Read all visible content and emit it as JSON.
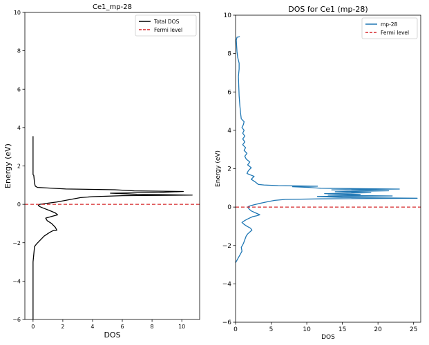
{
  "chart_data": [
    {
      "type": "line",
      "title": "Ce1_mp-28",
      "xlabel": "DOS",
      "ylabel": "Energy (eV)",
      "xlim": [
        -0.55,
        11.2
      ],
      "ylim": [
        -6,
        10
      ],
      "xticks": [
        0,
        2,
        4,
        6,
        8,
        10
      ],
      "yticks": [
        -6,
        -4,
        -2,
        0,
        2,
        4,
        6,
        8,
        10
      ],
      "grid": false,
      "legend": "top-right",
      "series": [
        {
          "name": "Total DOS",
          "color": "#000000",
          "style": "solid",
          "points": [
            [
              0,
              -6.0
            ],
            [
              0,
              -3.0
            ],
            [
              0.05,
              -2.6
            ],
            [
              0.1,
              -2.2
            ],
            [
              0.25,
              -2.05
            ],
            [
              0.5,
              -1.85
            ],
            [
              0.75,
              -1.65
            ],
            [
              0.95,
              -1.55
            ],
            [
              1.15,
              -1.45
            ],
            [
              1.4,
              -1.35
            ],
            [
              1.6,
              -1.35
            ],
            [
              1.5,
              -1.2
            ],
            [
              1.25,
              -1.0
            ],
            [
              0.95,
              -0.85
            ],
            [
              0.85,
              -0.72
            ],
            [
              1.3,
              -0.62
            ],
            [
              1.65,
              -0.55
            ],
            [
              1.5,
              -0.45
            ],
            [
              1.1,
              -0.32
            ],
            [
              0.7,
              -0.2
            ],
            [
              0.45,
              -0.12
            ],
            [
              0.35,
              -0.05
            ],
            [
              0.45,
              0
            ],
            [
              0.9,
              0.05
            ],
            [
              1.6,
              0.12
            ],
            [
              2.5,
              0.25
            ],
            [
              3.2,
              0.35
            ],
            [
              4.0,
              0.4
            ],
            [
              6.0,
              0.45
            ],
            [
              10.7,
              0.48
            ],
            [
              7.0,
              0.52
            ],
            [
              5.2,
              0.58
            ],
            [
              8.5,
              0.62
            ],
            [
              10.1,
              0.67
            ],
            [
              6.8,
              0.7
            ],
            [
              5.5,
              0.76
            ],
            [
              2.2,
              0.8
            ],
            [
              0.3,
              0.88
            ],
            [
              0.15,
              0.95
            ],
            [
              0.1,
              1.1
            ],
            [
              0.05,
              1.5
            ],
            [
              0,
              1.55
            ],
            [
              0,
              3.55
            ]
          ]
        },
        {
          "name": "Fermi level",
          "color": "#d62728",
          "style": "dashed",
          "points": [
            [
              -0.55,
              0
            ],
            [
              11.2,
              0
            ]
          ]
        }
      ]
    },
    {
      "type": "line",
      "title": "DOS for Ce1 (mp-28)",
      "xlabel": "DOS",
      "ylabel": "Energy (eV)",
      "xlim": [
        0,
        26
      ],
      "ylim": [
        -6,
        10
      ],
      "xticks": [
        0,
        5,
        10,
        15,
        20,
        25
      ],
      "yticks": [
        -6,
        -4,
        -2,
        0,
        2,
        4,
        6,
        8,
        10
      ],
      "grid": false,
      "legend": "top-right",
      "series": [
        {
          "name": "mp-28",
          "color": "#1f77b4",
          "style": "solid",
          "points": [
            [
              0,
              -2.9
            ],
            [
              0.3,
              -2.7
            ],
            [
              0.6,
              -2.5
            ],
            [
              0.9,
              -2.3
            ],
            [
              0.8,
              -2.1
            ],
            [
              1.1,
              -1.9
            ],
            [
              1.3,
              -1.7
            ],
            [
              1.5,
              -1.5
            ],
            [
              1.7,
              -1.4
            ],
            [
              2.0,
              -1.3
            ],
            [
              2.3,
              -1.2
            ],
            [
              2.1,
              -1.1
            ],
            [
              1.6,
              -1.0
            ],
            [
              1.2,
              -0.9
            ],
            [
              0.9,
              -0.8
            ],
            [
              1.3,
              -0.7
            ],
            [
              1.8,
              -0.6
            ],
            [
              2.4,
              -0.5
            ],
            [
              3.0,
              -0.45
            ],
            [
              3.4,
              -0.4
            ],
            [
              2.8,
              -0.3
            ],
            [
              2.2,
              -0.2
            ],
            [
              1.9,
              -0.1
            ],
            [
              1.7,
              0
            ],
            [
              1.9,
              0.05
            ],
            [
              2.6,
              0.12
            ],
            [
              3.5,
              0.2
            ],
            [
              4.5,
              0.28
            ],
            [
              5.5,
              0.35
            ],
            [
              7.0,
              0.4
            ],
            [
              12.0,
              0.43
            ],
            [
              25.5,
              0.46
            ],
            [
              15.0,
              0.5
            ],
            [
              11.5,
              0.55
            ],
            [
              22.0,
              0.58
            ],
            [
              13.0,
              0.62
            ],
            [
              17.5,
              0.66
            ],
            [
              12.5,
              0.7
            ],
            [
              19.0,
              0.75
            ],
            [
              14.0,
              0.8
            ],
            [
              21.5,
              0.85
            ],
            [
              13.5,
              0.9
            ],
            [
              23.0,
              0.94
            ],
            [
              12.0,
              0.98
            ],
            [
              10.5,
              1.02
            ],
            [
              8.0,
              1.06
            ],
            [
              11.5,
              1.09
            ],
            [
              6.0,
              1.12
            ],
            [
              4.0,
              1.15
            ],
            [
              3.2,
              1.18
            ],
            [
              2.8,
              1.3
            ],
            [
              2.2,
              1.45
            ],
            [
              2.6,
              1.6
            ],
            [
              1.6,
              1.75
            ],
            [
              1.8,
              1.9
            ],
            [
              2.2,
              2.05
            ],
            [
              1.7,
              2.2
            ],
            [
              2.0,
              2.35
            ],
            [
              1.5,
              2.5
            ],
            [
              1.3,
              2.65
            ],
            [
              1.6,
              2.8
            ],
            [
              1.2,
              2.95
            ],
            [
              1.4,
              3.1
            ],
            [
              1.0,
              3.25
            ],
            [
              1.3,
              3.4
            ],
            [
              1.0,
              3.55
            ],
            [
              1.3,
              3.7
            ],
            [
              1.0,
              3.85
            ],
            [
              1.2,
              4.0
            ],
            [
              0.9,
              4.15
            ],
            [
              1.1,
              4.3
            ],
            [
              1.2,
              4.45
            ],
            [
              0.8,
              4.6
            ],
            [
              0.7,
              4.9
            ],
            [
              0.6,
              5.3
            ],
            [
              0.5,
              5.8
            ],
            [
              0.45,
              6.3
            ],
            [
              0.4,
              6.8
            ],
            [
              0.5,
              7.2
            ],
            [
              0.5,
              7.5
            ],
            [
              0.3,
              7.8
            ],
            [
              0.2,
              8.1
            ],
            [
              0.15,
              8.4
            ],
            [
              0.1,
              8.7
            ],
            [
              0.2,
              8.85
            ],
            [
              0.6,
              8.88
            ]
          ]
        },
        {
          "name": "Fermi level",
          "color": "#d62728",
          "style": "dashed",
          "points": [
            [
              0,
              0
            ],
            [
              26,
              0
            ]
          ]
        }
      ]
    }
  ]
}
